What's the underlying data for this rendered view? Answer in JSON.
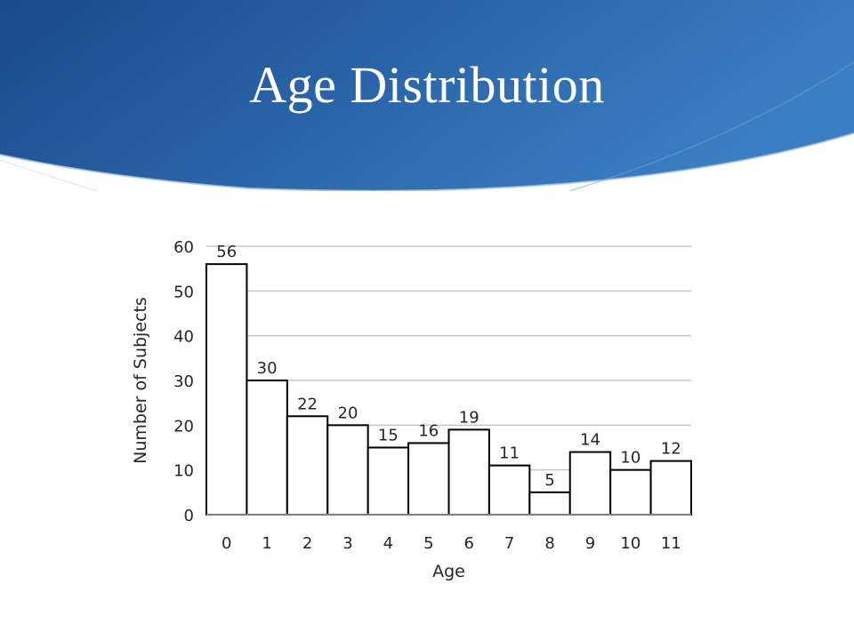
{
  "slide": {
    "title": "Age Distribution",
    "colors": {
      "header_dark": "#1b4f8f",
      "header_light": "#3c7dc0",
      "accent_line": "#9fc3e6"
    }
  },
  "chart_data": {
    "type": "bar",
    "categories": [
      "0",
      "1",
      "2",
      "3",
      "4",
      "5",
      "6",
      "7",
      "8",
      "9",
      "10",
      "11"
    ],
    "values": [
      56,
      30,
      22,
      20,
      15,
      16,
      19,
      11,
      5,
      14,
      10,
      12
    ],
    "xlabel": "Age",
    "ylabel": "Number of Subjects",
    "ylim": [
      0,
      60
    ],
    "yticks": [
      0,
      10,
      20,
      30,
      40,
      50,
      60
    ],
    "grid": true,
    "data_labels": true,
    "bar_fill": "#ffffff",
    "bar_stroke": "#000000"
  }
}
